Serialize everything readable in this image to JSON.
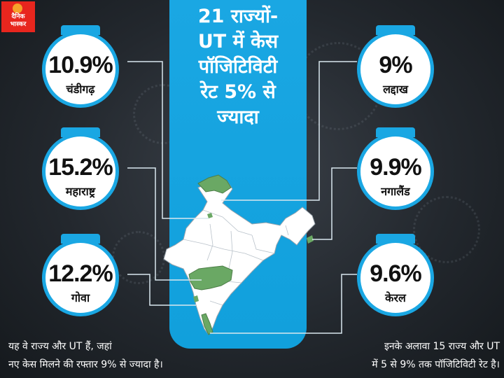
{
  "logo": {
    "line1": "दैनिक",
    "line2": "भास्कर"
  },
  "headline": {
    "lines": [
      "21 राज्यों-",
      "UT में केस",
      "पॉजिटिविटी",
      "रेट 5% से",
      "ज्यादा"
    ]
  },
  "states": [
    {
      "value": "10.9%",
      "name": "चंडीगढ़"
    },
    {
      "value": "15.2%",
      "name": "महाराष्ट्र"
    },
    {
      "value": "12.2%",
      "name": "गोवा"
    },
    {
      "value": "9%",
      "name": "लद्दाख"
    },
    {
      "value": "9.9%",
      "name": "नगालैंड"
    },
    {
      "value": "9.6%",
      "name": "केरल"
    }
  ],
  "footer": {
    "left": [
      "यह वे राज्य और UT हैं, जहां",
      "नए केस मिलने की रफ्तार 9% से ज्यादा है।"
    ],
    "right": [
      "इनके अलावा 15 राज्य और UT",
      "में 5 से 9% तक पॉजिटिविटी रेट है।"
    ]
  },
  "colors": {
    "panel_blue": "#1aa7e3",
    "highlight_green": "#6aa864",
    "map_fill": "#ffffff",
    "logo_red": "#e8261e"
  }
}
